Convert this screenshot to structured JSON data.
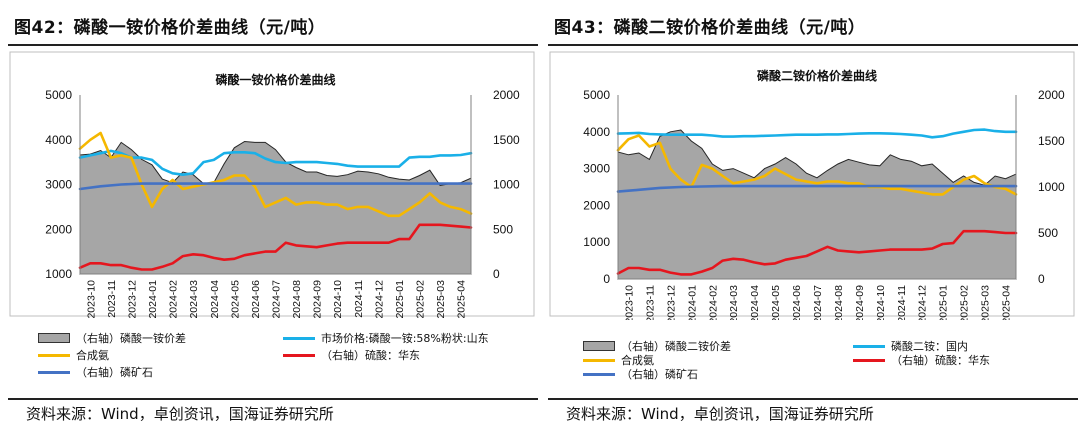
{
  "figures": [
    {
      "fig_title": "图42：磷酸一铵价格价差曲线（元/吨）",
      "source": "资料来源：Wind，卓创资讯，国海证券研究所",
      "legend": [
        {
          "key": "spread",
          "label": "（右轴）磷酸一铵价差"
        },
        {
          "key": "main",
          "label": "市场价格:磷酸一铵:58%粉状:山东"
        },
        {
          "key": "ammonia",
          "label": "合成氨"
        },
        {
          "key": "sulfuric",
          "label": "（右轴）硫酸：华东"
        },
        {
          "key": "rock",
          "label": "（右轴）磷矿石"
        }
      ]
    },
    {
      "fig_title": "图43：磷酸二铵价格价差曲线（元/吨）",
      "source": "资料来源：Wind，卓创资讯，国海证券研究所",
      "legend": [
        {
          "key": "spread",
          "label": "（右轴）磷酸二铵价差"
        },
        {
          "key": "main",
          "label": "磷酸二铵：国内"
        },
        {
          "key": "ammonia",
          "label": "合成氨"
        },
        {
          "key": "sulfuric",
          "label": "（右轴）硫酸：华东"
        },
        {
          "key": "rock",
          "label": "（右轴）磷矿石"
        }
      ]
    }
  ],
  "colors": {
    "spread_fill": "#a6a6a6",
    "spread_edge": "#262626",
    "main": "#1ab0e8",
    "ammonia": "#f5b800",
    "sulfuric": "#e5161e",
    "rock": "#4472c4",
    "axis": "#808080",
    "frame": "#bfbfbf"
  },
  "chart_data": [
    {
      "type": "line",
      "title": "磷酸一铵价格价差曲线",
      "x_ticks": [
        "2023-10",
        "2023-11",
        "2023-12",
        "2024-01",
        "2024-02",
        "2024-03",
        "2024-04",
        "2024-05",
        "2024-06",
        "2024-07",
        "2024-08",
        "2024-09",
        "2024-10",
        "2024-11",
        "2024-12",
        "2025-01",
        "2025-02",
        "2025-03",
        "2025-04"
      ],
      "x_range": [
        0,
        19
      ],
      "ylim_left": [
        1000,
        5000
      ],
      "ylim_right": [
        0,
        2000
      ],
      "yticks_left": [
        1000,
        2000,
        3000,
        4000,
        5000
      ],
      "yticks_right": [
        0,
        500,
        1000,
        1500,
        2000
      ],
      "series": [
        {
          "key": "spread",
          "name": "（右轴）磷酸一铵价差",
          "axis": "right",
          "kind": "area",
          "x": [
            0,
            0.5,
            1,
            1.5,
            2,
            2.5,
            3,
            3.5,
            4,
            4.5,
            5,
            5.5,
            6,
            6.5,
            7,
            7.5,
            8,
            8.5,
            9,
            9.5,
            10,
            10.5,
            11,
            11.5,
            12,
            12.5,
            13,
            13.5,
            14,
            14.5,
            15,
            15.5,
            16,
            16.5,
            17,
            17.5,
            18,
            18.5,
            19
          ],
          "values": [
            1330,
            1340,
            1380,
            1300,
            1470,
            1390,
            1280,
            1220,
            1060,
            1020,
            1140,
            1110,
            1010,
            1020,
            1230,
            1410,
            1480,
            1470,
            1470,
            1390,
            1250,
            1190,
            1140,
            1140,
            1100,
            1090,
            1110,
            1150,
            1140,
            1120,
            1080,
            1060,
            1050,
            1100,
            1160,
            990,
            1010,
            1020,
            1070
          ]
        },
        {
          "key": "main",
          "name": "市场价格:磷酸一铵:58%粉状:山东",
          "axis": "left",
          "x": [
            0,
            0.5,
            1,
            1.5,
            2,
            2.5,
            3,
            3.5,
            4,
            4.5,
            5,
            5.5,
            6,
            6.5,
            7,
            7.5,
            8,
            8.5,
            9,
            9.5,
            10,
            10.5,
            11,
            11.5,
            12,
            12.5,
            13,
            13.5,
            14,
            14.5,
            15,
            15.5,
            16,
            16.5,
            17,
            17.5,
            18,
            18.5,
            19
          ],
          "values": [
            3600,
            3650,
            3700,
            3750,
            3700,
            3600,
            3600,
            3550,
            3350,
            3250,
            3220,
            3250,
            3500,
            3550,
            3700,
            3720,
            3720,
            3700,
            3580,
            3500,
            3480,
            3500,
            3500,
            3500,
            3480,
            3460,
            3420,
            3400,
            3400,
            3400,
            3400,
            3400,
            3600,
            3620,
            3620,
            3650,
            3650,
            3660,
            3700
          ]
        },
        {
          "key": "ammonia",
          "name": "合成氨",
          "axis": "left",
          "x": [
            0,
            0.5,
            1,
            1.5,
            2,
            2.5,
            3,
            3.5,
            4,
            4.5,
            5,
            5.5,
            6,
            6.5,
            7,
            7.5,
            8,
            8.5,
            9,
            9.5,
            10,
            10.5,
            11,
            11.5,
            12,
            12.5,
            13,
            13.5,
            14,
            14.5,
            15,
            15.5,
            16,
            16.5,
            17,
            17.5,
            18,
            18.5,
            19
          ],
          "values": [
            3800,
            4000,
            4150,
            3600,
            3650,
            3600,
            3000,
            2500,
            2900,
            3100,
            2900,
            2950,
            3000,
            3050,
            3100,
            3200,
            3200,
            2950,
            2500,
            2600,
            2700,
            2550,
            2600,
            2600,
            2550,
            2550,
            2450,
            2500,
            2500,
            2400,
            2300,
            2300,
            2450,
            2600,
            2800,
            2600,
            2500,
            2450,
            2350
          ]
        },
        {
          "key": "sulfuric",
          "name": "（右轴）硫酸：华东",
          "axis": "right",
          "x": [
            0,
            0.5,
            1,
            1.5,
            2,
            2.5,
            3,
            3.5,
            4,
            4.5,
            5,
            5.5,
            6,
            6.5,
            7,
            7.5,
            8,
            8.5,
            9,
            9.5,
            10,
            10.5,
            11,
            11.5,
            12,
            12.5,
            13,
            13.5,
            14,
            14.5,
            15,
            15.5,
            16,
            16.5,
            17,
            17.5,
            18,
            18.5,
            19
          ],
          "values": [
            70,
            120,
            120,
            100,
            100,
            70,
            50,
            50,
            80,
            120,
            200,
            220,
            210,
            180,
            160,
            170,
            210,
            230,
            250,
            250,
            350,
            320,
            310,
            300,
            320,
            340,
            350,
            350,
            350,
            350,
            350,
            390,
            390,
            550,
            550,
            550,
            540,
            530,
            520
          ]
        },
        {
          "key": "rock",
          "name": "（右轴）磷矿石",
          "axis": "right",
          "x": [
            0,
            1,
            2,
            3,
            4,
            5,
            6,
            7,
            8,
            9,
            10,
            11,
            12,
            13,
            14,
            15,
            16,
            17,
            18,
            19
          ],
          "values": [
            950,
            980,
            1000,
            1010,
            1010,
            1010,
            1010,
            1010,
            1010,
            1010,
            1010,
            1010,
            1010,
            1010,
            1010,
            1010,
            1010,
            1010,
            1010,
            1010
          ]
        }
      ]
    },
    {
      "type": "line",
      "title": "磷酸二铵价格价差曲线",
      "x_ticks": [
        "2023-10",
        "2023-11",
        "2023-12",
        "2024-01",
        "2024-02",
        "2024-03",
        "2024-04",
        "2024-05",
        "2024-06",
        "2024-07",
        "2024-08",
        "2024-09",
        "2024-10",
        "2024-11",
        "2024-12",
        "2025-01",
        "2025-02",
        "2025-03",
        "2025-04"
      ],
      "x_range": [
        0,
        19
      ],
      "ylim_left": [
        0,
        5000
      ],
      "ylim_right": [
        0,
        2000
      ],
      "yticks_left": [
        0,
        1000,
        2000,
        3000,
        4000,
        5000
      ],
      "yticks_right": [
        0,
        500,
        1000,
        1500,
        2000
      ],
      "series": [
        {
          "key": "spread",
          "name": "（右轴）磷酸二铵价差",
          "axis": "right",
          "kind": "area",
          "x": [
            0,
            0.5,
            1,
            1.5,
            2,
            2.5,
            3,
            3.5,
            4,
            4.5,
            5,
            5.5,
            6,
            6.5,
            7,
            7.5,
            8,
            8.5,
            9,
            9.5,
            10,
            10.5,
            11,
            11.5,
            12,
            12.5,
            13,
            13.5,
            14,
            14.5,
            15,
            15.5,
            16,
            16.5,
            17,
            17.5,
            18,
            18.5,
            19
          ],
          "values": [
            1380,
            1350,
            1370,
            1300,
            1550,
            1600,
            1620,
            1500,
            1420,
            1250,
            1180,
            1200,
            1150,
            1100,
            1200,
            1250,
            1320,
            1250,
            1150,
            1100,
            1180,
            1250,
            1300,
            1270,
            1240,
            1230,
            1350,
            1300,
            1280,
            1230,
            1250,
            1150,
            1050,
            1120,
            1050,
            1020,
            1120,
            1090,
            1140
          ]
        },
        {
          "key": "main",
          "name": "磷酸二铵：国内",
          "axis": "left",
          "x": [
            0,
            0.5,
            1,
            1.5,
            2,
            2.5,
            3,
            3.5,
            4,
            4.5,
            5,
            5.5,
            6,
            6.5,
            7,
            7.5,
            8,
            8.5,
            9,
            9.5,
            10,
            10.5,
            11,
            11.5,
            12,
            12.5,
            13,
            13.5,
            14,
            14.5,
            15,
            15.5,
            16,
            16.5,
            17,
            17.5,
            18,
            18.5,
            19
          ],
          "values": [
            3950,
            3960,
            3970,
            3940,
            3930,
            3920,
            3920,
            3920,
            3920,
            3900,
            3870,
            3870,
            3880,
            3880,
            3890,
            3900,
            3910,
            3920,
            3920,
            3920,
            3930,
            3930,
            3940,
            3950,
            3960,
            3960,
            3950,
            3940,
            3920,
            3900,
            3850,
            3880,
            3950,
            4000,
            4050,
            4060,
            4020,
            4000,
            4000
          ]
        },
        {
          "key": "ammonia",
          "name": "合成氨",
          "axis": "left",
          "x": [
            0,
            0.5,
            1,
            1.5,
            2,
            2.5,
            3,
            3.5,
            4,
            4.5,
            5,
            5.5,
            6,
            6.5,
            7,
            7.5,
            8,
            8.5,
            9,
            9.5,
            10,
            10.5,
            11,
            11.5,
            12,
            12.5,
            13,
            13.5,
            14,
            14.5,
            15,
            15.5,
            16,
            16.5,
            17,
            17.5,
            18,
            18.5,
            19
          ],
          "values": [
            3500,
            3800,
            3900,
            3600,
            3700,
            3000,
            2700,
            2500,
            3100,
            3000,
            2800,
            2600,
            2650,
            2700,
            2800,
            3000,
            2850,
            2700,
            2650,
            2600,
            2650,
            2650,
            2600,
            2600,
            2500,
            2500,
            2450,
            2450,
            2400,
            2350,
            2300,
            2300,
            2500,
            2700,
            2800,
            2600,
            2500,
            2450,
            2300
          ]
        },
        {
          "key": "sulfuric",
          "name": "（右轴）硫酸：华东",
          "axis": "right",
          "x": [
            0,
            0.5,
            1,
            1.5,
            2,
            2.5,
            3,
            3.5,
            4,
            4.5,
            5,
            5.5,
            6,
            6.5,
            7,
            7.5,
            8,
            8.5,
            9,
            9.5,
            10,
            10.5,
            11,
            11.5,
            12,
            12.5,
            13,
            13.5,
            14,
            14.5,
            15,
            15.5,
            16,
            16.5,
            17,
            17.5,
            18,
            18.5,
            19
          ],
          "values": [
            60,
            120,
            120,
            100,
            100,
            70,
            50,
            50,
            80,
            120,
            200,
            220,
            210,
            180,
            160,
            170,
            210,
            230,
            250,
            300,
            350,
            310,
            300,
            290,
            300,
            310,
            320,
            320,
            320,
            320,
            330,
            380,
            390,
            520,
            520,
            520,
            510,
            500,
            500
          ]
        },
        {
          "key": "rock",
          "name": "（右轴）磷矿石",
          "axis": "right",
          "x": [
            0,
            1,
            2,
            3,
            4,
            5,
            6,
            7,
            8,
            9,
            10,
            11,
            12,
            13,
            14,
            15,
            16,
            17,
            18,
            19
          ],
          "values": [
            950,
            970,
            990,
            1000,
            1005,
            1010,
            1010,
            1010,
            1010,
            1010,
            1010,
            1010,
            1010,
            1010,
            1010,
            1010,
            1010,
            1010,
            1010,
            1010
          ]
        }
      ]
    }
  ]
}
